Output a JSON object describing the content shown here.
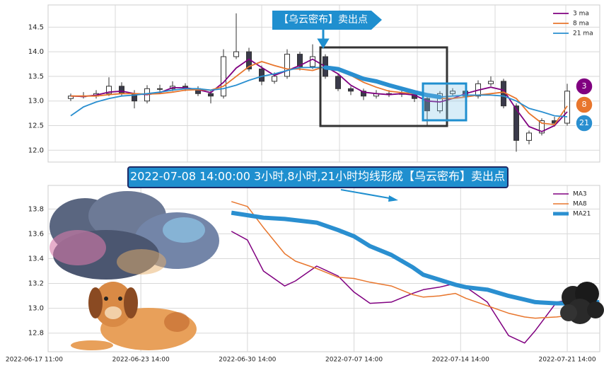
{
  "chart_data": [
    {
      "type": "candlestick",
      "annotation": "【乌云密布】卖出点",
      "badges": [
        "3",
        "8",
        "21"
      ],
      "open": [
        13.05,
        13.1,
        13.1,
        13.15,
        13.3,
        13.15,
        13.0,
        13.25,
        13.25,
        13.3,
        13.25,
        13.15,
        13.1,
        13.9,
        14.0,
        13.65,
        13.4,
        13.5,
        13.95,
        13.7,
        13.9,
        13.5,
        13.25,
        13.2,
        13.1,
        13.15,
        13.15,
        13.15,
        13.05,
        12.8,
        13.15,
        13.2,
        13.1,
        13.35,
        13.4,
        12.9,
        12.2,
        12.35,
        12.6,
        12.55
      ],
      "high": [
        13.15,
        13.18,
        13.22,
        13.48,
        13.38,
        13.22,
        13.32,
        13.33,
        13.4,
        13.36,
        13.3,
        13.22,
        14.05,
        14.78,
        14.08,
        13.72,
        13.58,
        14.05,
        14.0,
        14.15,
        13.95,
        13.55,
        13.3,
        13.25,
        13.22,
        13.22,
        13.22,
        13.22,
        13.12,
        13.2,
        13.26,
        13.25,
        13.42,
        13.5,
        13.45,
        12.95,
        12.4,
        12.65,
        12.68,
        13.35
      ],
      "low": [
        13.0,
        13.05,
        13.05,
        13.1,
        13.1,
        12.85,
        12.95,
        13.18,
        13.2,
        13.2,
        13.1,
        12.95,
        13.05,
        13.85,
        13.6,
        13.32,
        13.35,
        13.45,
        13.62,
        13.65,
        13.45,
        13.2,
        13.12,
        13.02,
        13.05,
        13.08,
        13.08,
        12.98,
        12.5,
        12.75,
        13.1,
        13.02,
        13.05,
        13.3,
        12.85,
        11.97,
        12.12,
        12.3,
        12.48,
        12.5
      ],
      "close": [
        13.1,
        13.1,
        13.15,
        13.3,
        13.15,
        13.0,
        13.25,
        13.25,
        13.3,
        13.25,
        13.15,
        13.1,
        13.9,
        14.0,
        13.65,
        13.4,
        13.5,
        13.95,
        13.7,
        13.9,
        13.5,
        13.25,
        13.2,
        13.1,
        13.15,
        13.15,
        13.15,
        13.05,
        12.8,
        13.15,
        13.2,
        13.1,
        13.35,
        13.4,
        12.9,
        12.2,
        12.35,
        12.6,
        12.55,
        13.2
      ],
      "up_color": "#ffffff",
      "down_color": "#3a3a4a",
      "series": [
        {
          "name": "3 ma",
          "color": "#800080",
          "linewidth": 1.8,
          "values": [
            13.1,
            13.09,
            13.12,
            13.18,
            13.2,
            13.15,
            13.13,
            13.17,
            13.27,
            13.27,
            13.23,
            13.17,
            13.38,
            13.67,
            13.85,
            13.68,
            13.52,
            13.62,
            13.72,
            13.85,
            13.7,
            13.55,
            13.32,
            13.18,
            13.15,
            13.13,
            13.15,
            13.12,
            13.0,
            12.98,
            13.05,
            13.15,
            13.22,
            13.28,
            13.22,
            12.83,
            12.48,
            12.38,
            12.5,
            12.78
          ]
        },
        {
          "name": "8 ma",
          "color": "#e8762d",
          "linewidth": 1.8,
          "values": [
            13.1,
            13.1,
            13.1,
            13.13,
            13.15,
            13.15,
            13.14,
            13.15,
            13.18,
            13.22,
            13.23,
            13.22,
            13.3,
            13.5,
            13.7,
            13.8,
            13.72,
            13.65,
            13.65,
            13.62,
            13.7,
            13.62,
            13.52,
            13.38,
            13.28,
            13.2,
            13.17,
            13.15,
            13.1,
            13.05,
            13.05,
            13.08,
            13.12,
            13.15,
            13.18,
            13.05,
            12.75,
            12.55,
            12.52,
            12.9
          ]
        },
        {
          "name": "21 ma",
          "color": "#2a8fd0",
          "linewidth": 1.8,
          "values": [
            12.7,
            12.88,
            12.98,
            13.05,
            13.1,
            13.12,
            13.15,
            13.18,
            13.22,
            13.25,
            13.25,
            13.22,
            13.25,
            13.32,
            13.42,
            13.5,
            13.55,
            13.62,
            13.68,
            13.68,
            13.68,
            13.65,
            13.55,
            13.45,
            13.4,
            13.32,
            13.25,
            13.18,
            13.12,
            13.08,
            13.1,
            13.12,
            13.12,
            13.12,
            13.1,
            13.0,
            12.85,
            12.78,
            12.7,
            12.68
          ]
        }
      ],
      "ylim": [
        11.76,
        14.95
      ],
      "yticks": [
        {
          "value": 12,
          "label": "12.0"
        },
        12.5,
        {
          "value": 13,
          "label": "13.0"
        },
        13.5,
        {
          "value": 14,
          "label": "14.0"
        },
        14.5
      ],
      "grid": true,
      "legend": "upper right"
    },
    {
      "type": "line",
      "annotation": "2022-07-08 14:00:00 3小时,8小时,21小时均线形成【乌云密布】卖出点",
      "x": [
        37,
        40,
        43,
        47,
        49,
        53,
        57,
        60,
        63,
        67,
        71,
        73,
        76,
        79,
        81,
        85,
        89,
        92,
        94,
        98,
        102,
        106
      ],
      "series": [
        {
          "name": "MA3",
          "color": "#800080",
          "linewidth": 1.5,
          "values": [
            13.62,
            13.55,
            13.3,
            13.18,
            13.22,
            13.34,
            13.26,
            13.13,
            13.04,
            13.05,
            13.12,
            13.15,
            13.17,
            13.2,
            13.17,
            13.05,
            12.78,
            12.72,
            12.82,
            13.05,
            13.08,
            13.05
          ]
        },
        {
          "name": "MA8",
          "color": "#e8762d",
          "linewidth": 1.5,
          "values": [
            13.86,
            13.82,
            13.65,
            13.44,
            13.38,
            13.32,
            13.25,
            13.24,
            13.21,
            13.18,
            13.11,
            13.09,
            13.1,
            13.12,
            13.08,
            13.02,
            12.96,
            12.93,
            12.92,
            12.93,
            12.95,
            12.97
          ]
        },
        {
          "name": "MA21",
          "color": "#2a8fd0",
          "linewidth": 6,
          "values": [
            13.77,
            13.75,
            13.73,
            13.72,
            13.71,
            13.69,
            13.63,
            13.58,
            13.5,
            13.43,
            13.33,
            13.27,
            13.23,
            13.19,
            13.17,
            13.15,
            13.1,
            13.07,
            13.05,
            13.04,
            13.04,
            13.05
          ]
        }
      ],
      "xlim": [
        2.6,
        106.1
      ],
      "xticks": [
        {
          "value": 0,
          "label": "2022-06-17 11:00"
        },
        {
          "value": 20,
          "label": "2022-06-23 14:00"
        },
        {
          "value": 40,
          "label": "2022-06-30 14:00"
        },
        {
          "value": 60,
          "label": "2022-07-07 14:00"
        },
        {
          "value": 80,
          "label": "2022-07-14 14:00"
        },
        {
          "value": 100,
          "label": "2022-07-21 14:00"
        }
      ],
      "ylim": [
        12.65,
        13.99
      ],
      "yticks": [
        12.8,
        {
          "value": 13,
          "label": "13.0"
        },
        13.2,
        13.4,
        13.6,
        13.8
      ],
      "grid": true,
      "legend": "upper right"
    }
  ]
}
